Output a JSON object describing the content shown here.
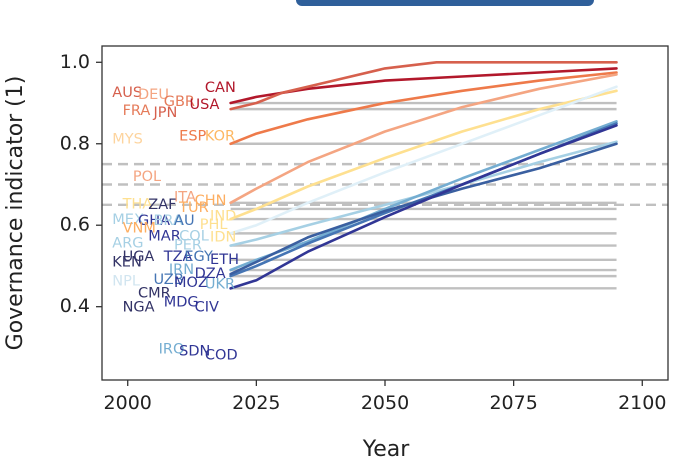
{
  "chart_data": {
    "type": "line",
    "title": "",
    "xlabel": "Year",
    "ylabel": "Governance indicator (1)",
    "xlim": [
      1995,
      2105
    ],
    "ylim": [
      0.22,
      1.04
    ],
    "xticks": [
      2000,
      2025,
      2050,
      2075,
      2100
    ],
    "yticks": [
      0.4,
      0.6,
      0.8,
      1.0
    ],
    "ytick_labels": [
      "0.4",
      "0.6",
      "0.8",
      "1.0"
    ],
    "grid": false,
    "threshold_lines": {
      "color": "#c0c0c0",
      "solid": [
        0.9,
        0.885,
        0.8,
        0.655,
        0.64,
        0.615,
        0.58,
        0.55,
        0.515,
        0.49,
        0.475,
        0.445
      ],
      "dashed": [
        0.75,
        0.7,
        0.65
      ]
    },
    "countries": [
      {
        "name": "AUS",
        "x": 1997,
        "y": 0.925,
        "color": "#d6604d"
      },
      {
        "name": "DEU",
        "x": 2002,
        "y": 0.92,
        "color": "#f4a582"
      },
      {
        "name": "CAN",
        "x": 2015,
        "y": 0.937,
        "color": "#b2182b"
      },
      {
        "name": "GBR",
        "x": 2007,
        "y": 0.903,
        "color": "#e57b5a"
      },
      {
        "name": "USA",
        "x": 2012,
        "y": 0.895,
        "color": "#b2182b"
      },
      {
        "name": "FRA",
        "x": 1999,
        "y": 0.88,
        "color": "#e57b5a"
      },
      {
        "name": "JPN",
        "x": 2005,
        "y": 0.876,
        "color": "#d6604d"
      },
      {
        "name": "MYS",
        "x": 1997,
        "y": 0.81,
        "color": "#fdd49e"
      },
      {
        "name": "ESP",
        "x": 2010,
        "y": 0.818,
        "color": "#ee7a4a"
      },
      {
        "name": "KOR",
        "x": 2015,
        "y": 0.818,
        "color": "#fdb863"
      },
      {
        "name": "POL",
        "x": 2001,
        "y": 0.718,
        "color": "#f4a582"
      },
      {
        "name": "ITA",
        "x": 2009,
        "y": 0.668,
        "color": "#f4a582"
      },
      {
        "name": "THA",
        "x": 1999,
        "y": 0.651,
        "color": "#fee090"
      },
      {
        "name": "ZAF",
        "x": 2004,
        "y": 0.65,
        "color": "#333366"
      },
      {
        "name": "CHN",
        "x": 2013,
        "y": 0.66,
        "color": "#fdae61"
      },
      {
        "name": "TUR",
        "x": 2010,
        "y": 0.642,
        "color": "#fdae61"
      },
      {
        "name": "IND",
        "x": 2016,
        "y": 0.622,
        "color": "#fee090"
      },
      {
        "name": "MEX",
        "x": 1997,
        "y": 0.613,
        "color": "#a6d0e4"
      },
      {
        "name": "GHA",
        "x": 2002,
        "y": 0.61,
        "color": "#313695"
      },
      {
        "name": "BRA",
        "x": 2005,
        "y": 0.61,
        "color": "#a6d0e4"
      },
      {
        "name": "AU",
        "x": 2009,
        "y": 0.61,
        "color": "#4575b4"
      },
      {
        "name": "PHL",
        "x": 2014,
        "y": 0.6,
        "color": "#fee090"
      },
      {
        "name": "VNM",
        "x": 1999,
        "y": 0.592,
        "color": "#fdae61"
      },
      {
        "name": "MAR",
        "x": 2004,
        "y": 0.572,
        "color": "#313695"
      },
      {
        "name": "COL",
        "x": 2010,
        "y": 0.572,
        "color": "#a6d0e4"
      },
      {
        "name": "IDN",
        "x": 2016,
        "y": 0.57,
        "color": "#fee090"
      },
      {
        "name": "ARG",
        "x": 1997,
        "y": 0.555,
        "color": "#a6d0e4"
      },
      {
        "name": "PER",
        "x": 2009,
        "y": 0.55,
        "color": "#a6d0e4"
      },
      {
        "name": "KEN",
        "x": 1997,
        "y": 0.508,
        "color": "#333366"
      },
      {
        "name": "UGA",
        "x": 1999,
        "y": 0.522,
        "color": "#333366"
      },
      {
        "name": "TZA",
        "x": 2007,
        "y": 0.522,
        "color": "#313695"
      },
      {
        "name": "EGY",
        "x": 2011,
        "y": 0.522,
        "color": "#4575b4"
      },
      {
        "name": "ETH",
        "x": 2016,
        "y": 0.515,
        "color": "#313695"
      },
      {
        "name": "IRN",
        "x": 2008,
        "y": 0.49,
        "color": "#74add1"
      },
      {
        "name": "DZA",
        "x": 2013,
        "y": 0.48,
        "color": "#313695"
      },
      {
        "name": "NPL",
        "x": 1997,
        "y": 0.462,
        "color": "#d1e5f0"
      },
      {
        "name": "UZB",
        "x": 2005,
        "y": 0.465,
        "color": "#4575b4"
      },
      {
        "name": "MOZ",
        "x": 2009,
        "y": 0.458,
        "color": "#313695"
      },
      {
        "name": "UKR",
        "x": 2015,
        "y": 0.455,
        "color": "#74add1"
      },
      {
        "name": "CMR",
        "x": 2002,
        "y": 0.432,
        "color": "#333366"
      },
      {
        "name": "MDG",
        "x": 2007,
        "y": 0.41,
        "color": "#313695"
      },
      {
        "name": "NGA",
        "x": 1999,
        "y": 0.398,
        "color": "#333366"
      },
      {
        "name": "CIV",
        "x": 2013,
        "y": 0.398,
        "color": "#313695"
      },
      {
        "name": "IRQ",
        "x": 2006,
        "y": 0.295,
        "color": "#74add1"
      },
      {
        "name": "SDN",
        "x": 2010,
        "y": 0.29,
        "color": "#313695"
      },
      {
        "name": "COD",
        "x": 2015,
        "y": 0.28,
        "color": "#313695"
      }
    ],
    "series": [
      {
        "color": "#b2182b",
        "x": [
          2020,
          2025,
          2035,
          2050,
          2065,
          2080,
          2095
        ],
        "values": [
          0.9,
          0.915,
          0.935,
          0.955,
          0.965,
          0.975,
          0.985
        ]
      },
      {
        "color": "#d6604d",
        "x": [
          2020,
          2025,
          2030,
          2040,
          2050,
          2060,
          2080,
          2095
        ],
        "values": [
          0.885,
          0.9,
          0.925,
          0.955,
          0.985,
          1.0,
          1.0,
          1.0
        ]
      },
      {
        "color": "#ee7a4a",
        "x": [
          2020,
          2025,
          2035,
          2050,
          2065,
          2080,
          2095
        ],
        "values": [
          0.8,
          0.825,
          0.86,
          0.9,
          0.93,
          0.955,
          0.975
        ]
      },
      {
        "color": "#f4a582",
        "x": [
          2020,
          2025,
          2035,
          2050,
          2065,
          2080,
          2095
        ],
        "values": [
          0.655,
          0.69,
          0.755,
          0.83,
          0.89,
          0.935,
          0.97
        ]
      },
      {
        "color": "#fee090",
        "x": [
          2020,
          2025,
          2035,
          2050,
          2065,
          2080,
          2095
        ],
        "values": [
          0.615,
          0.64,
          0.695,
          0.765,
          0.83,
          0.885,
          0.93
        ]
      },
      {
        "color": "#e0f0f8",
        "x": [
          2020,
          2025,
          2035,
          2050,
          2065,
          2080,
          2095
        ],
        "values": [
          0.58,
          0.6,
          0.655,
          0.73,
          0.8,
          0.87,
          0.94
        ]
      },
      {
        "color": "#a6d0e4",
        "x": [
          2020,
          2025,
          2035,
          2050,
          2065,
          2080,
          2095
        ],
        "values": [
          0.55,
          0.565,
          0.6,
          0.65,
          0.7,
          0.755,
          0.805
        ]
      },
      {
        "color": "#74add1",
        "x": [
          2020,
          2025,
          2035,
          2050,
          2065,
          2080,
          2095
        ],
        "values": [
          0.49,
          0.515,
          0.56,
          0.64,
          0.715,
          0.785,
          0.855
        ]
      },
      {
        "color": "#4575b4",
        "x": [
          2020,
          2025,
          2035,
          2050,
          2065,
          2080,
          2095
        ],
        "values": [
          0.475,
          0.5,
          0.555,
          0.63,
          0.7,
          0.775,
          0.85
        ]
      },
      {
        "color": "#3a5fa0",
        "x": [
          2020,
          2025,
          2035,
          2050,
          2065,
          2080,
          2095
        ],
        "values": [
          0.48,
          0.51,
          0.57,
          0.635,
          0.69,
          0.74,
          0.8
        ]
      },
      {
        "color": "#313695",
        "x": [
          2020,
          2025,
          2035,
          2050,
          2065,
          2080,
          2095
        ],
        "values": [
          0.445,
          0.465,
          0.535,
          0.62,
          0.7,
          0.775,
          0.845
        ]
      }
    ]
  }
}
